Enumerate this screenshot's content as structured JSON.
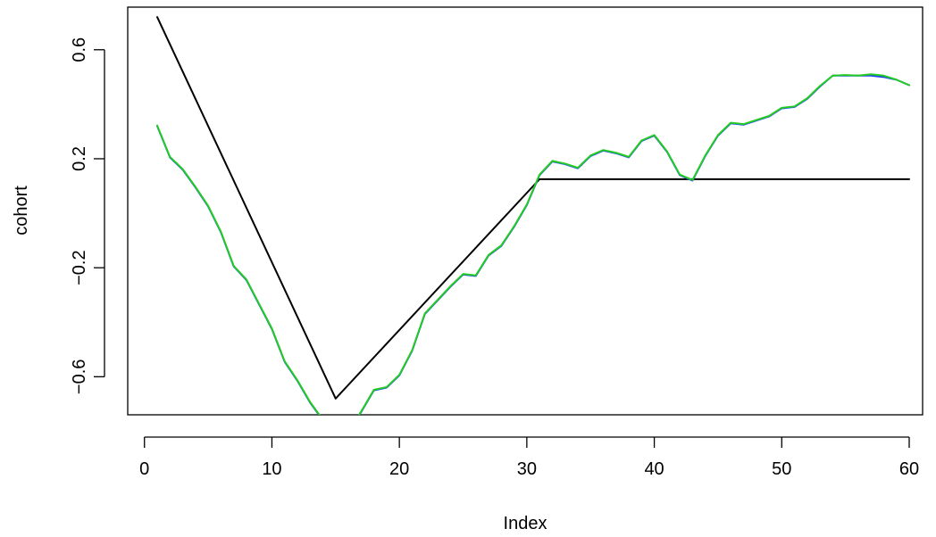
{
  "chart_data": {
    "type": "line",
    "title": "",
    "xlabel": "Index",
    "ylabel": "cohort",
    "xlim": [
      1,
      60
    ],
    "ylim": [
      -0.72,
      0.74
    ],
    "x_ticks": [
      0,
      10,
      20,
      30,
      40,
      50,
      60
    ],
    "y_ticks": [
      -0.6,
      -0.2,
      0.2,
      0.6
    ],
    "y_tick_labels": [
      "−0.6",
      "−0.2",
      "0.2",
      "0.6"
    ],
    "grid": false,
    "legend": "none",
    "series": [
      {
        "color": "#000000",
        "x": [
          1,
          15,
          31,
          60
        ],
        "values": [
          0.72,
          -0.68,
          0.125,
          0.125
        ]
      },
      {
        "color": "#2040ff",
        "x": [
          1,
          2,
          3,
          4,
          5,
          6,
          7,
          8,
          9,
          10,
          11,
          12,
          13,
          14,
          15,
          16,
          17,
          18,
          19,
          20,
          21,
          22,
          23,
          24,
          25,
          26,
          27,
          28,
          29,
          30,
          31,
          32,
          33,
          34,
          35,
          36,
          37,
          38,
          39,
          40,
          41,
          42,
          43,
          44,
          45,
          46,
          47,
          48,
          49,
          50,
          51,
          52,
          53,
          54,
          55,
          56,
          57,
          58,
          59,
          60
        ],
        "values": [
          0.32,
          0.205,
          0.16,
          0.095,
          0.025,
          -0.07,
          -0.195,
          -0.245,
          -0.335,
          -0.425,
          -0.545,
          -0.615,
          -0.695,
          -0.76,
          -0.8,
          -0.8,
          -0.73,
          -0.65,
          -0.64,
          -0.595,
          -0.505,
          -0.37,
          -0.32,
          -0.27,
          -0.225,
          -0.23,
          -0.155,
          -0.12,
          -0.05,
          0.03,
          0.14,
          0.19,
          0.18,
          0.165,
          0.21,
          0.23,
          0.22,
          0.205,
          0.265,
          0.285,
          0.225,
          0.14,
          0.12,
          0.21,
          0.285,
          0.33,
          0.325,
          0.34,
          0.355,
          0.385,
          0.39,
          0.42,
          0.465,
          0.505,
          0.505,
          0.505,
          0.505,
          0.5,
          0.49,
          0.47
        ]
      },
      {
        "color": "#22cc22",
        "x": [
          1,
          2,
          3,
          4,
          5,
          6,
          7,
          8,
          9,
          10,
          11,
          12,
          13,
          14,
          15,
          16,
          17,
          18,
          19,
          20,
          21,
          22,
          23,
          24,
          25,
          26,
          27,
          28,
          29,
          30,
          31,
          32,
          33,
          34,
          35,
          36,
          37,
          38,
          39,
          40,
          41,
          42,
          43,
          44,
          45,
          46,
          47,
          48,
          49,
          50,
          51,
          52,
          53,
          54,
          55,
          56,
          57,
          58,
          59,
          60
        ],
        "values": [
          0.322,
          0.207,
          0.162,
          0.097,
          0.027,
          -0.068,
          -0.193,
          -0.243,
          -0.333,
          -0.423,
          -0.543,
          -0.613,
          -0.693,
          -0.758,
          -0.8,
          -0.8,
          -0.728,
          -0.648,
          -0.638,
          -0.593,
          -0.503,
          -0.368,
          -0.318,
          -0.268,
          -0.223,
          -0.228,
          -0.153,
          -0.118,
          -0.048,
          0.032,
          0.142,
          0.192,
          0.182,
          0.167,
          0.212,
          0.232,
          0.222,
          0.207,
          0.267,
          0.287,
          0.227,
          0.142,
          0.122,
          0.212,
          0.287,
          0.332,
          0.327,
          0.342,
          0.357,
          0.387,
          0.392,
          0.422,
          0.467,
          0.505,
          0.507,
          0.505,
          0.51,
          0.505,
          0.49,
          0.47
        ]
      }
    ]
  }
}
